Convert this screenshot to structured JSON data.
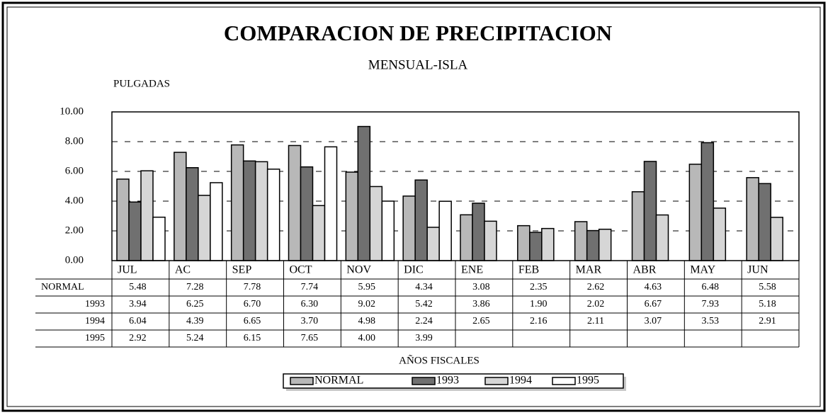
{
  "chart_data": {
    "type": "bar",
    "title": "COMPARACION DE PRECIPITACION",
    "subtitle": "MENSUAL-ISLA",
    "y_label": "PULGADAS",
    "x_label": "AÑOS FISCALES",
    "categories": [
      "JUL",
      "AC",
      "SEP",
      "OCT",
      "NOV",
      "DIC",
      "ENE",
      "FEB",
      "MAR",
      "ABR",
      "MAY",
      "JUN"
    ],
    "series": [
      {
        "name": "NORMAL",
        "color": "#b8b8b8",
        "values": [
          5.48,
          7.28,
          7.78,
          7.74,
          5.95,
          4.34,
          3.08,
          2.35,
          2.62,
          4.63,
          6.48,
          5.58
        ],
        "value_labels": [
          "5.48",
          "7.28",
          "7.78",
          "7.74",
          "5.95",
          "4.34",
          "3.08",
          "2.35",
          "2.62",
          "4.63",
          "6.48",
          "5.58"
        ]
      },
      {
        "name": "1993",
        "color": "#707070",
        "values": [
          3.94,
          6.25,
          6.7,
          6.3,
          9.02,
          5.42,
          3.86,
          1.9,
          2.02,
          6.67,
          7.93,
          5.18
        ],
        "value_labels": [
          "3.94",
          "6.25",
          "6.70",
          "6.30",
          "9.02",
          "5.42",
          "3.86",
          "1.90",
          "2.02",
          "6.67",
          "7.93",
          "5.18"
        ]
      },
      {
        "name": "1994",
        "color": "#d6d6d6",
        "values": [
          6.04,
          4.39,
          6.65,
          3.7,
          4.98,
          2.24,
          2.65,
          2.16,
          2.11,
          3.07,
          3.53,
          2.91
        ],
        "value_labels": [
          "6.04",
          "4.39",
          "6.65",
          "3.70",
          "4.98",
          "2.24",
          "2.65",
          "2.16",
          "2.11",
          "3.07",
          "3.53",
          "2.91"
        ]
      },
      {
        "name": "1995",
        "color": "#ffffff",
        "values": [
          2.92,
          5.24,
          6.15,
          7.65,
          4.0,
          3.99,
          null,
          null,
          null,
          null,
          null,
          null
        ],
        "value_labels": [
          "2.92",
          "5.24",
          "6.15",
          "7.65",
          "4.00",
          "3.99",
          null,
          null,
          null,
          null,
          null,
          null
        ]
      }
    ],
    "ylim": [
      0,
      10
    ],
    "yticks": [
      {
        "value": 0,
        "label": "0.00"
      },
      {
        "value": 2,
        "label": "2.00"
      },
      {
        "value": 4,
        "label": "4.00"
      },
      {
        "value": 6,
        "label": "6.00"
      },
      {
        "value": 8,
        "label": "8.00"
      },
      {
        "value": 10,
        "label": "10.00"
      }
    ],
    "grid": true
  }
}
